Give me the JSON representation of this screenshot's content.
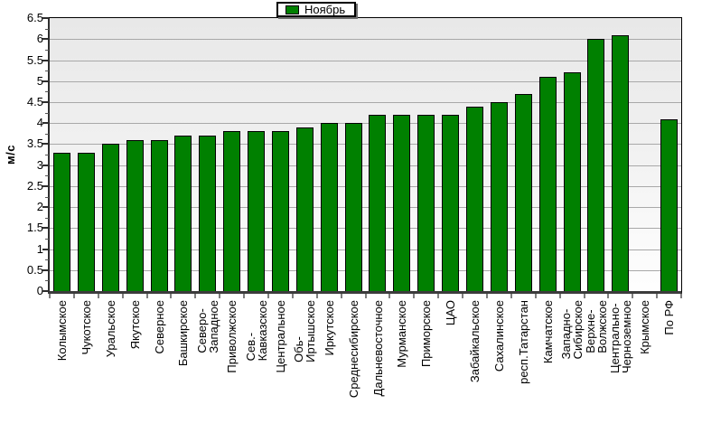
{
  "chart_data": {
    "type": "bar",
    "title": "",
    "legend": [
      "Ноябрь"
    ],
    "legend_position": "top-center",
    "ylabel": "м/с",
    "xlabel": "",
    "ylim": [
      0,
      6.5
    ],
    "ytick_step": 0.5,
    "grid": "horizontal",
    "bar_color": "#008000",
    "bar_border_color": "#000000",
    "x_labels_rotated": true,
    "categories": [
      "Колымское",
      "Чукотское",
      "Уральское",
      "Якутское",
      "Северное",
      "Башкирское",
      "Северо-\nЗападное",
      "Приволжское",
      "Сев.-\nКавказское",
      "Центральное",
      "Обь-\nИртышское",
      "Иркутское",
      "Среднесибирское",
      "Дальневосточное",
      "Мурманское",
      "Приморское",
      "ЦАО",
      "Забайкальское",
      "Сахалинское",
      "респ.Татарстан",
      "Камчатское",
      "Западно-\nСибирское",
      "Верхне-\nВолжское",
      "Центрально-\nЧерноземное",
      "Крымское",
      "По РФ"
    ],
    "values": [
      3.3,
      3.3,
      3.5,
      3.6,
      3.6,
      3.7,
      3.7,
      3.8,
      3.8,
      3.8,
      3.9,
      4.0,
      4.0,
      4.2,
      4.2,
      4.2,
      4.2,
      4.4,
      4.5,
      4.7,
      5.1,
      5.2,
      6.0,
      6.1,
      null,
      4.1
    ]
  }
}
